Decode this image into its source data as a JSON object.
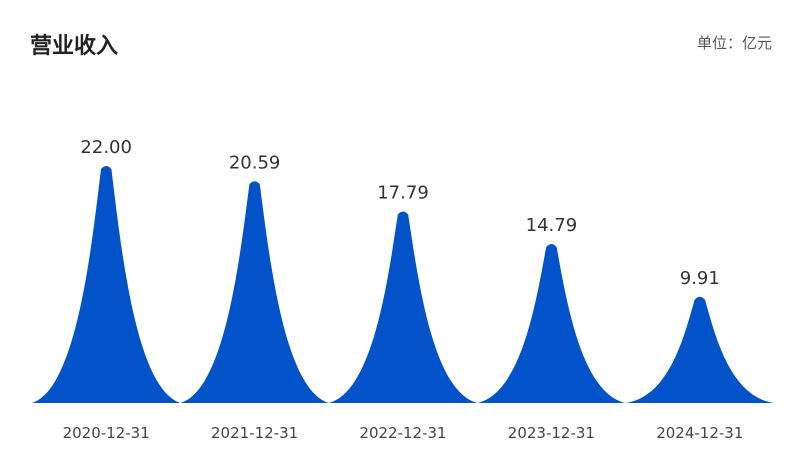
{
  "header": {
    "title": "营业收入",
    "unit": "单位：亿元"
  },
  "colors": {
    "bar": "#0252C9"
  },
  "chart_data": {
    "type": "bar",
    "title": "营业收入",
    "unit": "单位：亿元",
    "categories": [
      "2020-12-31",
      "2021-12-31",
      "2022-12-31",
      "2023-12-31",
      "2024-12-31"
    ],
    "values": [
      22.0,
      20.59,
      17.79,
      14.79,
      9.91
    ],
    "value_labels": [
      "22.00",
      "20.59",
      "17.79",
      "14.79",
      "9.91"
    ],
    "ylim": [
      0,
      22.0
    ],
    "grid": false,
    "legend": "none"
  }
}
